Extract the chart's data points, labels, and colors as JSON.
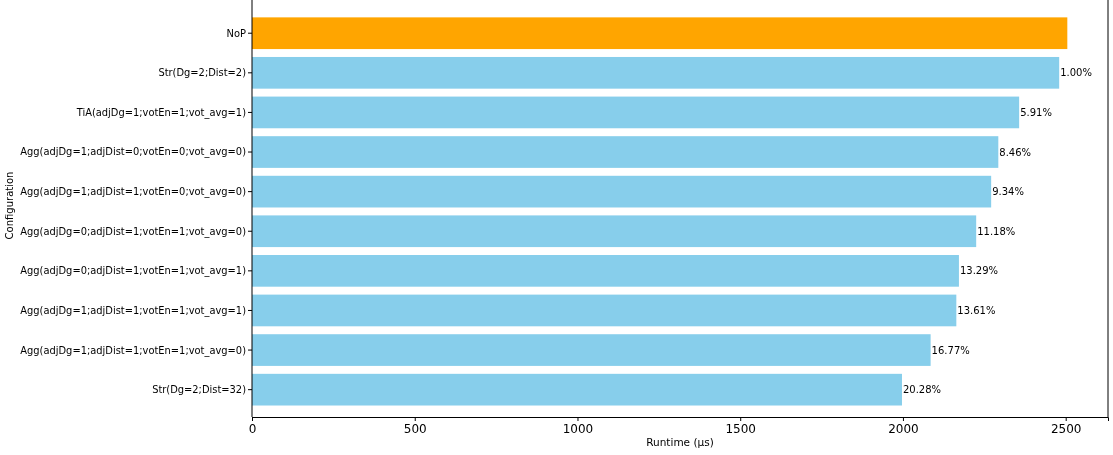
{
  "chart_data": {
    "type": "bar",
    "orientation": "horizontal",
    "xlabel": "Runtime (μs)",
    "ylabel": "Configuration",
    "categories": [
      "NoP",
      "Str(Dg=2;Dist=2)",
      "TiA(adjDg=1;votEn=1;vot_avg=1)",
      "Agg(adjDg=1;adjDist=0;votEn=0;vot_avg=0)",
      "Agg(adjDg=1;adjDist=1;votEn=0;vot_avg=0)",
      "Agg(adjDg=0;adjDist=1;votEn=1;vot_avg=0)",
      "Agg(adjDg=0;adjDist=1;votEn=1;vot_avg=1)",
      "Agg(adjDg=1;adjDist=1;votEn=1;vot_avg=1)",
      "Agg(adjDg=1;adjDist=1;votEn=1;vot_avg=0)",
      "Str(Dg=2;Dist=32)"
    ],
    "values": [
      2505,
      2480,
      2357,
      2293,
      2271,
      2225,
      2172,
      2164,
      2085,
      1997
    ],
    "annotations": [
      {
        "text": "1.00%",
        "x": 2480,
        "y": "Str(Dg=2;Dist=2)"
      },
      {
        "text": "5.91%",
        "x": 2357,
        "y": "TiA(adjDg=1;votEn=1;vot_avg=1)"
      },
      {
        "text": "8.46%",
        "x": 2293,
        "y": "Agg(adjDg=1;adjDist=0;votEn=0;vot_avg=0)"
      },
      {
        "text": "9.34%",
        "x": 2271,
        "y": "Agg(adjDg=1;adjDist=1;votEn=0;vot_avg=0)"
      },
      {
        "text": "11.18%",
        "x": 2225,
        "y": "Agg(adjDg=0;adjDist=1;votEn=1;vot_avg=0)"
      },
      {
        "text": "13.29%",
        "x": 2172,
        "y": "Agg(adjDg=0;adjDist=1;votEn=1;vot_avg=1)"
      },
      {
        "text": "13.61%",
        "x": 2164,
        "y": "Agg(adjDg=1;adjDist=1;votEn=1;vot_avg=1)"
      },
      {
        "text": "16.77%",
        "x": 2085,
        "y": "Agg(adjDg=1;adjDist=1;votEn=1;vot_avg=0)"
      },
      {
        "text": "20.28%",
        "x": 1997,
        "y": "Str(Dg=2;Dist=32)"
      }
    ],
    "colors": [
      "#ffa500",
      "#87ceeb",
      "#87ceeb",
      "#87ceeb",
      "#87ceeb",
      "#87ceeb",
      "#87ceeb",
      "#87ceeb",
      "#87ceeb",
      "#87ceeb"
    ],
    "xlim": [
      0,
      2630
    ],
    "xticks": [
      0,
      500,
      1000,
      1500,
      2000,
      2500
    ]
  }
}
